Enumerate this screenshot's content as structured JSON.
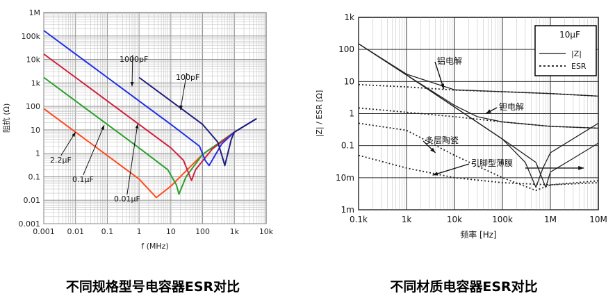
{
  "chart_data": [
    {
      "type": "line",
      "axis_scale": "log-log",
      "grid": true,
      "xlabel": "f (MHz)",
      "ylabel": "阻抗 (Ω)",
      "xlim": [
        0.001,
        10000
      ],
      "ylim": [
        0.001,
        1000000
      ],
      "x_ticks": [
        "0.001",
        "0.01",
        "0.1",
        "1",
        "10",
        "100",
        "1k",
        "10k"
      ],
      "y_ticks": [
        "0.001",
        "0.01",
        "0.1",
        "1",
        "10",
        "100",
        "1k",
        "10k",
        "100k",
        "1M"
      ],
      "series": [
        {
          "name": "2.2μF",
          "color": "#ff4a1c",
          "points": [
            [
              0.001,
              80
            ],
            [
              0.01,
              8
            ],
            [
              0.1,
              0.8
            ],
            [
              1,
              0.08
            ],
            [
              3.5,
              0.013
            ],
            [
              10,
              0.04
            ],
            [
              100,
              0.9
            ],
            [
              1000,
              8
            ],
            [
              5000,
              30
            ]
          ]
        },
        {
          "name": "0.1μF",
          "color": "#2aa02a",
          "points": [
            [
              0.001,
              1700
            ],
            [
              0.01,
              170
            ],
            [
              0.1,
              17
            ],
            [
              1,
              1.7
            ],
            [
              8,
              0.2
            ],
            [
              15,
              0.045
            ],
            [
              18,
              0.018
            ],
            [
              30,
              0.1
            ],
            [
              100,
              0.9
            ],
            [
              1000,
              8
            ],
            [
              5000,
              30
            ]
          ]
        },
        {
          "name": "0.01μF",
          "color": "#d0203c",
          "points": [
            [
              0.001,
              17000
            ],
            [
              0.01,
              1700
            ],
            [
              0.1,
              170
            ],
            [
              1,
              17
            ],
            [
              10,
              1.7
            ],
            [
              25,
              0.5
            ],
            [
              40,
              0.1
            ],
            [
              45,
              0.07
            ],
            [
              60,
              0.2
            ],
            [
              200,
              1.5
            ],
            [
              1000,
              8
            ],
            [
              5000,
              30
            ]
          ]
        },
        {
          "name": "1000pF",
          "color": "#1f2ee6",
          "points": [
            [
              0.001,
              170000
            ],
            [
              0.01,
              17000
            ],
            [
              0.1,
              1700
            ],
            [
              1,
              170
            ],
            [
              10,
              17
            ],
            [
              80,
              2
            ],
            [
              120,
              0.5
            ],
            [
              160,
              0.3
            ],
            [
              200,
              0.5
            ],
            [
              400,
              2.5
            ],
            [
              1000,
              8
            ],
            [
              5000,
              30
            ]
          ]
        },
        {
          "name": "100pF",
          "color": "#1f1f80",
          "points": [
            [
              1,
              1700
            ],
            [
              10,
              170
            ],
            [
              100,
              17
            ],
            [
              300,
              3
            ],
            [
              450,
              0.5
            ],
            [
              500,
              0.3
            ],
            [
              600,
              0.8
            ],
            [
              800,
              4
            ],
            [
              1000,
              8
            ],
            [
              5000,
              30
            ]
          ]
        }
      ],
      "annotations": [
        "1000pF",
        "100pF",
        "2.2μF",
        "0.1μF",
        "0.01μF"
      ]
    },
    {
      "type": "line",
      "axis_scale": "log-log",
      "grid": true,
      "xlabel": "频率 [Hz]",
      "ylabel": "|Z| / ESR [Ω]",
      "xlim": [
        100,
        10000000
      ],
      "ylim": [
        0.001,
        1000
      ],
      "x_ticks": [
        "0.1k",
        "1k",
        "10k",
        "100k",
        "1M",
        "10M"
      ],
      "y_ticks": [
        "1m",
        "10m",
        "0.1",
        "1",
        "10",
        "100",
        "1k"
      ],
      "legend": {
        "title": "10μF",
        "entries": [
          "|Z|",
          "ESR"
        ],
        "position": "top-right"
      },
      "series": [
        {
          "name": "|Z|",
          "label": "铝电解",
          "style": "solid",
          "points": [
            [
              100,
              150
            ],
            [
              1000,
              17
            ],
            [
              10000,
              5.5
            ],
            [
              100000,
              4.8
            ],
            [
              1000000,
              4.2
            ],
            [
              10000000,
              3.5
            ]
          ]
        },
        {
          "name": "ESR",
          "label": "铝电解",
          "style": "dotted",
          "points": [
            [
              100,
              8
            ],
            [
              1000,
              6.8
            ],
            [
              10000,
              5.4
            ],
            [
              100000,
              4.8
            ],
            [
              1000000,
              4.2
            ],
            [
              10000000,
              3.5
            ]
          ]
        },
        {
          "name": "|Z|",
          "label": "钽电解",
          "style": "solid",
          "points": [
            [
              100,
              150
            ],
            [
              1000,
              16
            ],
            [
              10000,
              1.8
            ],
            [
              30000,
              0.8
            ],
            [
              100000,
              0.55
            ],
            [
              1000000,
              0.4
            ],
            [
              10000000,
              0.35
            ]
          ]
        },
        {
          "name": "ESR",
          "label": "钽电解",
          "style": "dotted",
          "points": [
            [
              100,
              1.5
            ],
            [
              1000,
              1.1
            ],
            [
              10000,
              0.8
            ],
            [
              100000,
              0.55
            ],
            [
              1000000,
              0.4
            ],
            [
              10000000,
              0.35
            ]
          ]
        },
        {
          "name": "|Z|",
          "label": "多层陶瓷",
          "style": "solid",
          "points": [
            [
              100,
              150
            ],
            [
              1000,
              16
            ],
            [
              10000,
              1.6
            ],
            [
              100000,
              0.16
            ],
            [
              300000,
              0.03
            ],
            [
              500000,
              0.005
            ],
            [
              700000,
              0.02
            ],
            [
              1000000,
              0.06
            ],
            [
              10000000,
              0.5
            ]
          ]
        },
        {
          "name": "ESR",
          "label": "多层陶瓷",
          "style": "dotted",
          "points": [
            [
              100,
              0.5
            ],
            [
              1000,
              0.3
            ],
            [
              10000,
              0.05
            ],
            [
              100000,
              0.01
            ],
            [
              500000,
              0.004
            ],
            [
              1000000,
              0.006
            ],
            [
              10000000,
              0.008
            ]
          ]
        },
        {
          "name": "|Z|",
          "label": "引脚型薄膜",
          "style": "solid",
          "points": [
            [
              100,
              150
            ],
            [
              1000,
              16
            ],
            [
              10000,
              1.6
            ],
            [
              100000,
              0.16
            ],
            [
              500000,
              0.03
            ],
            [
              800000,
              0.005
            ],
            [
              1000000,
              0.015
            ],
            [
              3000000,
              0.04
            ],
            [
              10000000,
              0.12
            ]
          ]
        },
        {
          "name": "ESR",
          "label": "引脚型薄膜",
          "style": "dotted",
          "points": [
            [
              100,
              0.05
            ],
            [
              1000,
              0.02
            ],
            [
              10000,
              0.01
            ],
            [
              100000,
              0.007
            ],
            [
              1000000,
              0.006
            ],
            [
              10000000,
              0.007
            ]
          ]
        }
      ],
      "annotations": [
        "铝电解",
        "钽电解",
        "多层陶瓷",
        "引脚型薄膜"
      ]
    }
  ],
  "captions": {
    "left": "不同规格型号电容器ESR对比",
    "right": "不同材质电容器ESR对比"
  }
}
